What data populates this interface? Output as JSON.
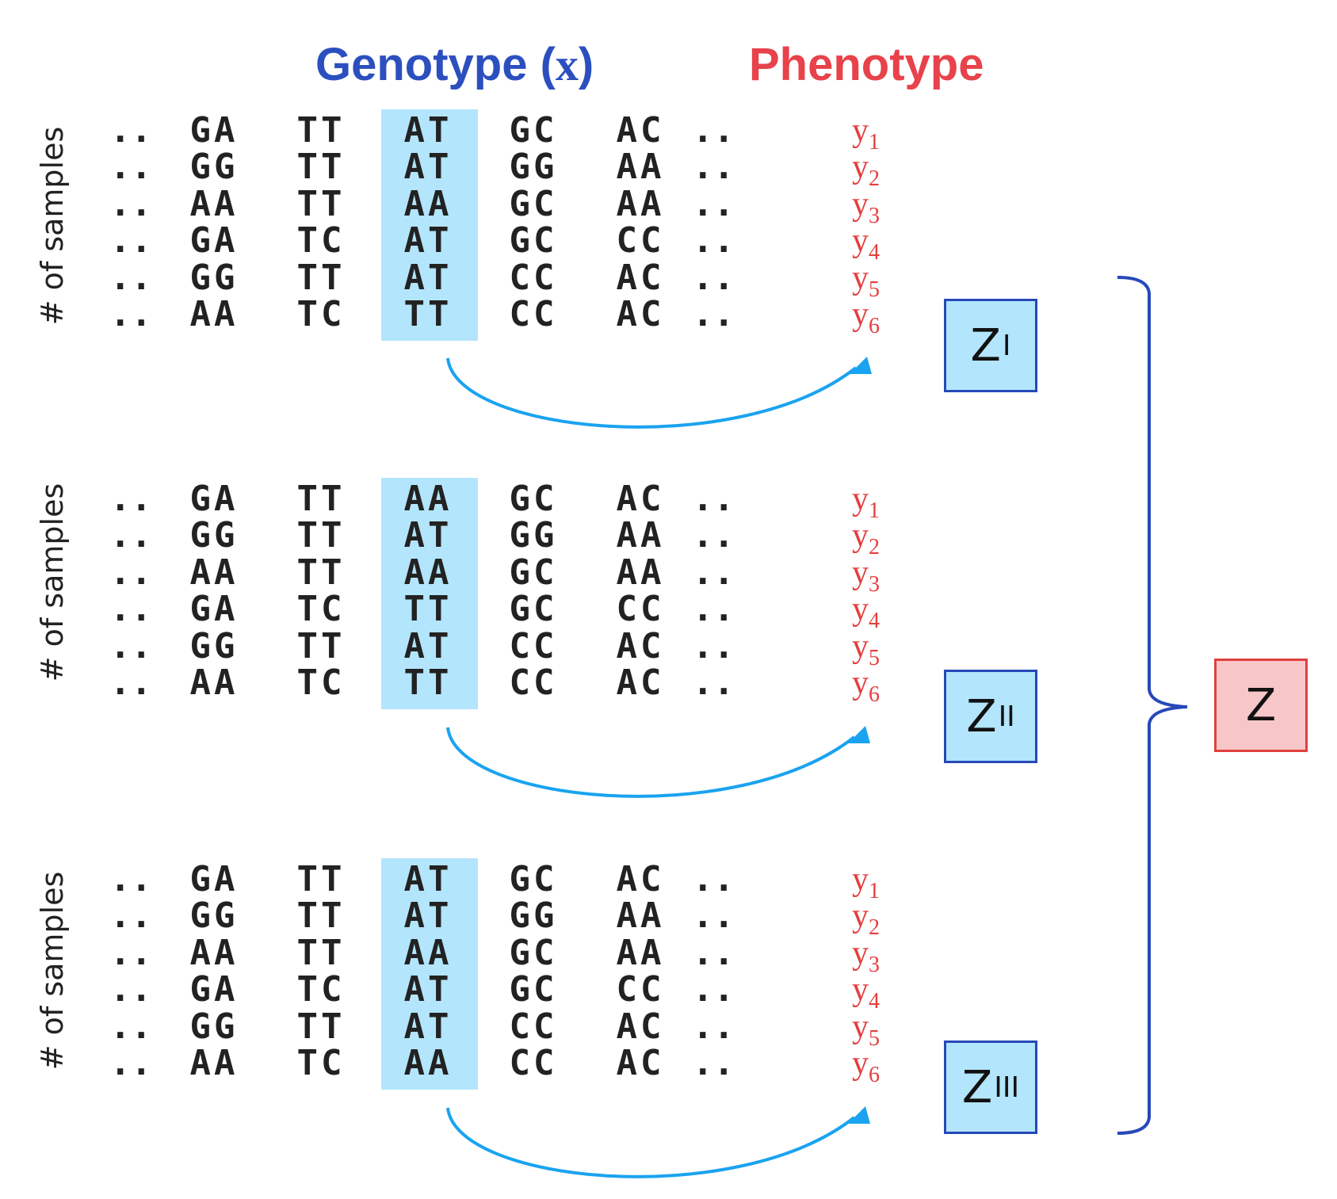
{
  "headers": {
    "genotype": "Genotype (",
    "genotype_var": "x",
    "genotype_close": ")",
    "phenotype": "Phenotype"
  },
  "colors": {
    "genotype_header": "#2c4fbf",
    "phenotype_header": "#e8424b",
    "phenotype_text": "#e53e3e",
    "highlight": "#b3e5fc",
    "arrow": "#1aa3f0",
    "bracket": "#2748b8",
    "sub_box_fill": "#b3e5fc",
    "sub_box_border": "#2748b8",
    "total_box_fill": "#f7c6c8",
    "total_box_border": "#e0403d"
  },
  "panels": [
    {
      "ylabel": "# of samples",
      "rows": [
        [
          "..",
          "GA",
          "TT",
          "AT",
          "GC",
          "AC",
          ".."
        ],
        [
          "..",
          "GG",
          "TT",
          "AT",
          "GG",
          "AA",
          ".."
        ],
        [
          "..",
          "AA",
          "TT",
          "AA",
          "GC",
          "AA",
          ".."
        ],
        [
          "..",
          "GA",
          "TC",
          "AT",
          "GC",
          "CC",
          ".."
        ],
        [
          "..",
          "GG",
          "TT",
          "AT",
          "CC",
          "AC",
          ".."
        ],
        [
          "..",
          "AA",
          "TC",
          "TT",
          "CC",
          "AC",
          ".."
        ]
      ],
      "phenotypes": [
        "1",
        "2",
        "3",
        "4",
        "5",
        "6"
      ],
      "z_main": "Z",
      "z_sub": "I"
    },
    {
      "ylabel": "# of samples",
      "rows": [
        [
          "..",
          "GA",
          "TT",
          "AA",
          "GC",
          "AC",
          ".."
        ],
        [
          "..",
          "GG",
          "TT",
          "AT",
          "GG",
          "AA",
          ".."
        ],
        [
          "..",
          "AA",
          "TT",
          "AA",
          "GC",
          "AA",
          ".."
        ],
        [
          "..",
          "GA",
          "TC",
          "TT",
          "GC",
          "CC",
          ".."
        ],
        [
          "..",
          "GG",
          "TT",
          "AT",
          "CC",
          "AC",
          ".."
        ],
        [
          "..",
          "AA",
          "TC",
          "TT",
          "CC",
          "AC",
          ".."
        ]
      ],
      "phenotypes": [
        "1",
        "2",
        "3",
        "4",
        "5",
        "6"
      ],
      "z_main": "Z",
      "z_sub": "II"
    },
    {
      "ylabel": "# of samples",
      "rows": [
        [
          "..",
          "GA",
          "TT",
          "AT",
          "GC",
          "AC",
          ".."
        ],
        [
          "..",
          "GG",
          "TT",
          "AT",
          "GG",
          "AA",
          ".."
        ],
        [
          "..",
          "AA",
          "TT",
          "AA",
          "GC",
          "AA",
          ".."
        ],
        [
          "..",
          "GA",
          "TC",
          "AT",
          "GC",
          "CC",
          ".."
        ],
        [
          "..",
          "GG",
          "TT",
          "AT",
          "CC",
          "AC",
          ".."
        ],
        [
          "..",
          "AA",
          "TC",
          "AA",
          "CC",
          "AC",
          ".."
        ]
      ],
      "phenotypes": [
        "1",
        "2",
        "3",
        "4",
        "5",
        "6"
      ],
      "z_main": "Z",
      "z_sub": "III"
    }
  ],
  "phenotype_symbol": "y",
  "highlighted_column": 3,
  "z_total": "Z"
}
